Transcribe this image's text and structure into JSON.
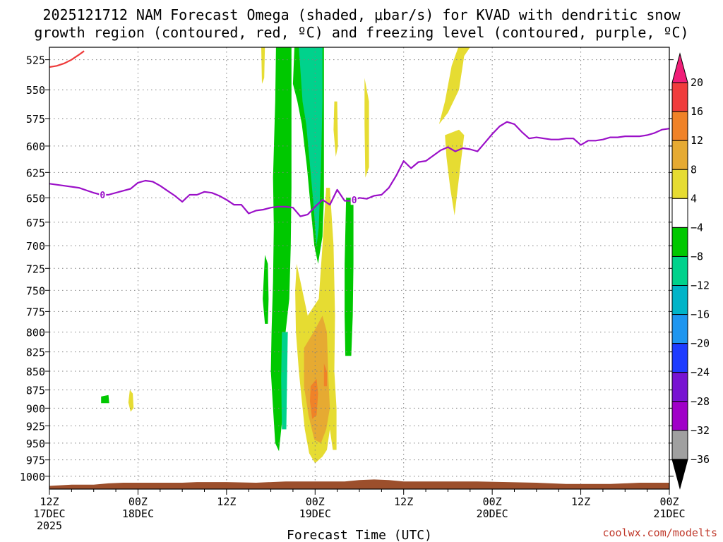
{
  "title": {
    "line1": "2025121712 NAM Forecast Omega (shaded, μbar/s) for KVAD with dendritic snow",
    "line2": "growth region (contoured, red, ºC) and freezing level (contoured, purple, ºC)"
  },
  "credit": "coolwx.com/modelts",
  "colors": {
    "freezing_level": "#9b10c8",
    "dendritic": "#ee3b3b",
    "terrain": "#9c4f2c",
    "grid": "#808080"
  },
  "chart_data": {
    "type": "heatmap",
    "xlabel": "Forecast Time (UTC)",
    "ylabel": "",
    "x_unit": "hours after 2025-12-17 12Z",
    "xlim": [
      0,
      84
    ],
    "y_scale": "log",
    "ylim": [
      1020,
      515
    ],
    "y_ticks": [
      525,
      550,
      575,
      600,
      625,
      650,
      675,
      700,
      725,
      750,
      775,
      800,
      825,
      850,
      875,
      900,
      925,
      950,
      975,
      1000
    ],
    "x_ticks": [
      {
        "x": 0,
        "line1": "12Z",
        "line2": "17DEC",
        "line3": "2025"
      },
      {
        "x": 12,
        "line1": "00Z",
        "line2": "18DEC",
        "line3": ""
      },
      {
        "x": 24,
        "line1": "12Z",
        "line2": "",
        "line3": ""
      },
      {
        "x": 36,
        "line1": "00Z",
        "line2": "19DEC",
        "line3": ""
      },
      {
        "x": 48,
        "line1": "12Z",
        "line2": "",
        "line3": ""
      },
      {
        "x": 60,
        "line1": "00Z",
        "line2": "20DEC",
        "line3": ""
      },
      {
        "x": 72,
        "line1": "12Z",
        "line2": "",
        "line3": ""
      },
      {
        "x": 84,
        "line1": "00Z",
        "line2": "21DEC",
        "line3": ""
      }
    ],
    "grid": true,
    "colorbar": {
      "labels": [
        "20",
        "16",
        "12",
        "8",
        "4",
        "−4",
        "−8",
        "−12",
        "−16",
        "−20",
        "−24",
        "−28",
        "−32",
        "−36"
      ],
      "colors": [
        "#f01e78",
        "#f03c3c",
        "#f08228",
        "#e6aa32",
        "#e6dc32",
        "#ffffff",
        "#00c800",
        "#00d28c",
        "#00b4c8",
        "#1e96f0",
        "#1e3cff",
        "#7814d2",
        "#a000c8",
        "#a0a0a0",
        "#000000"
      ]
    },
    "freezing_level": {
      "label": "0",
      "points": [
        [
          0,
          636
        ],
        [
          2,
          638
        ],
        [
          4,
          640
        ],
        [
          6,
          645
        ],
        [
          7,
          647
        ],
        [
          8,
          647
        ],
        [
          10,
          643
        ],
        [
          11,
          641
        ],
        [
          12,
          635
        ],
        [
          13,
          633
        ],
        [
          14,
          634
        ],
        [
          15,
          638
        ],
        [
          16,
          643
        ],
        [
          17,
          648
        ],
        [
          18,
          654
        ],
        [
          19,
          647
        ],
        [
          20,
          647
        ],
        [
          21,
          644
        ],
        [
          22,
          645
        ],
        [
          23,
          648
        ],
        [
          24,
          652
        ],
        [
          25,
          657
        ],
        [
          26,
          657
        ],
        [
          27,
          666
        ],
        [
          28,
          663
        ],
        [
          29,
          662
        ],
        [
          30,
          660
        ],
        [
          31,
          659
        ],
        [
          32,
          659
        ],
        [
          33,
          660
        ],
        [
          34,
          669
        ],
        [
          35,
          667
        ],
        [
          36,
          659
        ],
        [
          37,
          652
        ],
        [
          38,
          657
        ],
        [
          39,
          642
        ],
        [
          40,
          653
        ],
        [
          41,
          653
        ],
        [
          42,
          650
        ],
        [
          43,
          651
        ],
        [
          44,
          648
        ],
        [
          45,
          647
        ],
        [
          46,
          640
        ],
        [
          47,
          628
        ],
        [
          48,
          614
        ],
        [
          49,
          621
        ],
        [
          50,
          615
        ],
        [
          51,
          614
        ],
        [
          52,
          609
        ],
        [
          53,
          604
        ],
        [
          54,
          601
        ],
        [
          55,
          605
        ],
        [
          56,
          602
        ],
        [
          57,
          603
        ],
        [
          58,
          605
        ],
        [
          59,
          597
        ],
        [
          60,
          589
        ],
        [
          61,
          582
        ],
        [
          62,
          578
        ],
        [
          63,
          580
        ],
        [
          64,
          587
        ],
        [
          65,
          593
        ],
        [
          66,
          592
        ],
        [
          67,
          593
        ],
        [
          68,
          594
        ],
        [
          69,
          594
        ],
        [
          70,
          593
        ],
        [
          71,
          593
        ],
        [
          72,
          599
        ],
        [
          73,
          595
        ],
        [
          74,
          595
        ],
        [
          75,
          594
        ],
        [
          76,
          592
        ],
        [
          77,
          592
        ],
        [
          78,
          591
        ],
        [
          79,
          591
        ],
        [
          80,
          591
        ],
        [
          81,
          590
        ],
        [
          82,
          588
        ],
        [
          83,
          585
        ],
        [
          84,
          584
        ]
      ]
    },
    "dendritic_contour": {
      "points": [
        [
          0,
          531
        ],
        [
          1,
          530
        ],
        [
          2,
          528
        ],
        [
          3,
          525
        ],
        [
          4,
          521
        ],
        [
          4.7,
          518
        ]
      ]
    },
    "terrain": {
      "points": [
        [
          0,
          1015
        ],
        [
          3,
          1013
        ],
        [
          6,
          1013
        ],
        [
          8,
          1011
        ],
        [
          10,
          1010
        ],
        [
          14,
          1010
        ],
        [
          18,
          1010
        ],
        [
          20,
          1009
        ],
        [
          24,
          1009
        ],
        [
          28,
          1010
        ],
        [
          32,
          1008
        ],
        [
          36,
          1008
        ],
        [
          40,
          1008
        ],
        [
          42,
          1006
        ],
        [
          44,
          1005
        ],
        [
          46,
          1006
        ],
        [
          48,
          1008
        ],
        [
          52,
          1008
        ],
        [
          58,
          1008
        ],
        [
          62,
          1009
        ],
        [
          66,
          1010
        ],
        [
          70,
          1012
        ],
        [
          72,
          1012
        ],
        [
          76,
          1012
        ],
        [
          78,
          1011
        ],
        [
          80,
          1010
        ],
        [
          84,
          1010
        ]
      ]
    },
    "omega_regions": [
      {
        "value": -6,
        "band": "-8..-4",
        "points": [
          [
            30.7,
            515
          ],
          [
            32.8,
            515
          ],
          [
            32.8,
            560
          ],
          [
            32.8,
            640
          ],
          [
            32.7,
            700
          ],
          [
            32.5,
            760
          ],
          [
            32.0,
            800
          ],
          [
            31.7,
            860
          ],
          [
            31.5,
            920
          ],
          [
            31.1,
            962
          ],
          [
            30.6,
            950
          ],
          [
            30.3,
            900
          ],
          [
            30.0,
            850
          ],
          [
            30.1,
            800
          ],
          [
            30.3,
            740
          ],
          [
            30.4,
            680
          ],
          [
            30.3,
            630
          ],
          [
            30.6,
            560
          ]
        ]
      },
      {
        "value": -6,
        "band": "-8..-4",
        "points": [
          [
            33.2,
            515
          ],
          [
            37.2,
            515
          ],
          [
            37.2,
            560
          ],
          [
            37.2,
            610
          ],
          [
            37.2,
            650
          ],
          [
            37.0,
            690
          ],
          [
            36.4,
            720
          ],
          [
            35.9,
            700
          ],
          [
            35.4,
            660
          ],
          [
            34.9,
            620
          ],
          [
            34.2,
            580
          ],
          [
            33.6,
            560
          ],
          [
            33.0,
            545
          ]
        ]
      },
      {
        "value": -6,
        "band": "-8..-4",
        "points": [
          [
            40.2,
            650
          ],
          [
            41.2,
            650
          ],
          [
            41.2,
            720
          ],
          [
            41.1,
            780
          ],
          [
            40.9,
            830
          ],
          [
            40.1,
            830
          ],
          [
            40.0,
            780
          ],
          [
            40.0,
            720
          ]
        ]
      },
      {
        "value": -6,
        "band": "-8..-4",
        "points": [
          [
            29.2,
            710
          ],
          [
            29.6,
            720
          ],
          [
            29.7,
            760
          ],
          [
            29.6,
            790
          ],
          [
            29.2,
            790
          ],
          [
            28.9,
            760
          ]
        ]
      },
      {
        "value": -6,
        "band": "-8..-4",
        "points": [
          [
            7.0,
            884
          ],
          [
            8.0,
            882
          ],
          [
            8.1,
            893
          ],
          [
            7.0,
            893
          ]
        ]
      },
      {
        "value": -10,
        "band": "-12..-8",
        "points": [
          [
            33.8,
            515
          ],
          [
            37.0,
            515
          ],
          [
            37.0,
            560
          ],
          [
            36.8,
            620
          ],
          [
            36.5,
            680
          ],
          [
            36.2,
            700
          ],
          [
            35.7,
            650
          ],
          [
            35.2,
            610
          ],
          [
            34.8,
            580
          ],
          [
            34.3,
            560
          ]
        ]
      },
      {
        "value": -10,
        "band": "-12..-8",
        "points": [
          [
            31.5,
            800
          ],
          [
            32.3,
            800
          ],
          [
            32.2,
            860
          ],
          [
            32.1,
            930
          ],
          [
            31.5,
            930
          ],
          [
            31.4,
            860
          ]
        ]
      },
      {
        "value": 6,
        "band": "4..8",
        "points": [
          [
            33.5,
            720
          ],
          [
            35.0,
            780
          ],
          [
            36.5,
            760
          ],
          [
            37.0,
            700
          ],
          [
            37.5,
            640
          ],
          [
            38.0,
            640
          ],
          [
            38.5,
            700
          ],
          [
            38.7,
            780
          ],
          [
            38.6,
            850
          ],
          [
            38.9,
            900
          ],
          [
            38.9,
            960
          ],
          [
            38.4,
            960
          ],
          [
            38.0,
            930
          ],
          [
            37.6,
            960
          ],
          [
            37.0,
            970
          ],
          [
            36.0,
            980
          ],
          [
            35.2,
            965
          ],
          [
            34.6,
            930
          ],
          [
            34.2,
            890
          ],
          [
            33.8,
            850
          ],
          [
            33.4,
            800
          ],
          [
            33.3,
            750
          ]
        ]
      },
      {
        "value": 6,
        "band": "4..8",
        "points": [
          [
            38.6,
            560
          ],
          [
            39.0,
            560
          ],
          [
            39.1,
            600
          ],
          [
            38.8,
            610
          ],
          [
            38.5,
            585
          ]
        ]
      },
      {
        "value": 6,
        "band": "4..8",
        "points": [
          [
            52.8,
            580
          ],
          [
            54.0,
            570
          ],
          [
            55.5,
            550
          ],
          [
            56.2,
            522
          ],
          [
            57.0,
            515
          ],
          [
            55.4,
            515
          ],
          [
            54.5,
            530
          ],
          [
            53.6,
            560
          ]
        ]
      },
      {
        "value": 6,
        "band": "4..8",
        "points": [
          [
            53.6,
            590
          ],
          [
            55.5,
            585
          ],
          [
            56.2,
            590
          ],
          [
            55.5,
            630
          ],
          [
            54.9,
            668
          ],
          [
            54.3,
            640
          ],
          [
            53.8,
            610
          ]
        ]
      },
      {
        "value": 6,
        "band": "4..8",
        "points": [
          [
            42.7,
            540
          ],
          [
            43.3,
            560
          ],
          [
            43.3,
            620
          ],
          [
            42.8,
            630
          ],
          [
            42.7,
            580
          ]
        ]
      },
      {
        "value": 6,
        "band": "4..8",
        "points": [
          [
            10.9,
            875
          ],
          [
            11.3,
            880
          ],
          [
            11.4,
            900
          ],
          [
            11.0,
            905
          ],
          [
            10.7,
            892
          ]
        ]
      },
      {
        "value": 6,
        "band": "4..8",
        "points": [
          [
            28.7,
            515
          ],
          [
            29.2,
            515
          ],
          [
            29.1,
            540
          ],
          [
            28.8,
            545
          ]
        ]
      },
      {
        "value": 10,
        "band": "8..12",
        "points": [
          [
            34.5,
            820
          ],
          [
            35.8,
            800
          ],
          [
            37.0,
            780
          ],
          [
            37.6,
            800
          ],
          [
            37.8,
            860
          ],
          [
            38.0,
            900
          ],
          [
            37.5,
            930
          ],
          [
            36.8,
            950
          ],
          [
            35.9,
            945
          ],
          [
            35.1,
            910
          ],
          [
            34.5,
            870
          ]
        ]
      },
      {
        "value": 14,
        "band": "12..16",
        "points": [
          [
            35.4,
            870
          ],
          [
            36.2,
            860
          ],
          [
            36.4,
            880
          ],
          [
            36.2,
            910
          ],
          [
            35.6,
            915
          ],
          [
            35.3,
            890
          ]
        ]
      },
      {
        "value": 14,
        "band": "12..16",
        "points": [
          [
            37.2,
            840
          ],
          [
            37.6,
            850
          ],
          [
            37.6,
            870
          ],
          [
            37.2,
            870
          ]
        ]
      }
    ]
  }
}
